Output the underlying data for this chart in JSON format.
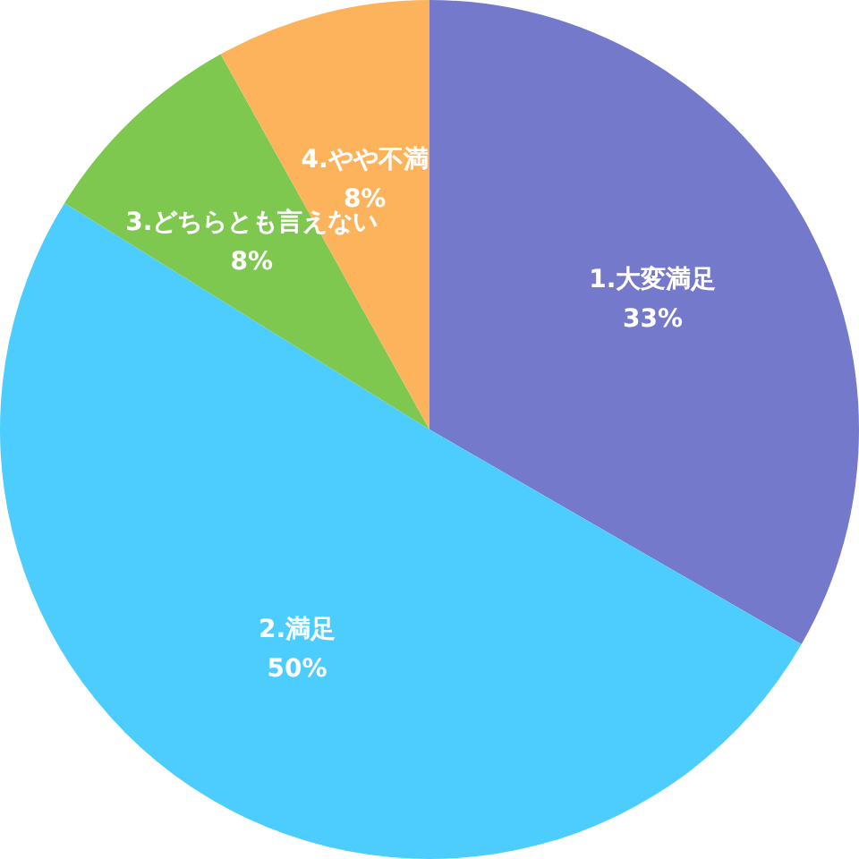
{
  "chart_data": {
    "type": "pie",
    "categories": [
      "1.大変満足",
      "2.満足",
      "3.どちらとも言えない",
      "4.やや不満"
    ],
    "values": [
      33,
      50,
      8,
      8
    ],
    "colors": [
      "#7479cb",
      "#4dcdfe",
      "#7ec850",
      "#fdb35c"
    ],
    "value_labels": [
      "33%",
      "50%",
      "8%",
      "8%"
    ],
    "legend": false
  }
}
